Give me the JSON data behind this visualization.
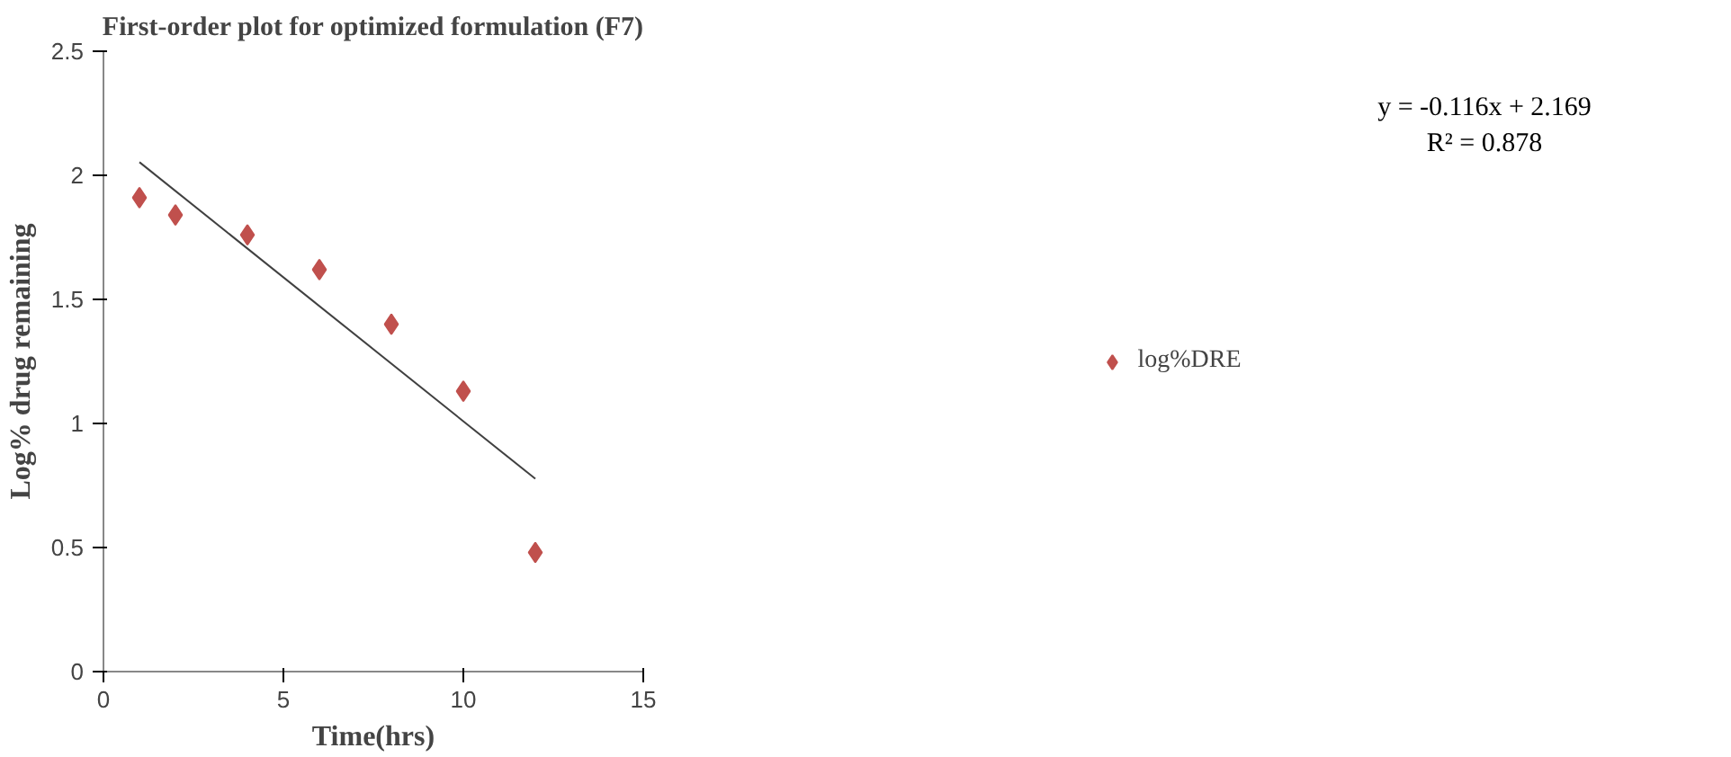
{
  "chart_data": {
    "type": "scatter",
    "title": "First-order plot for optimized formulation (F7)",
    "xlabel": "Time(hrs)",
    "ylabel": "Log% drug remaining",
    "xlim": [
      0,
      15
    ],
    "xticks": [
      0,
      5,
      10,
      15
    ],
    "ylim": [
      0,
      2.5
    ],
    "yticks": [
      0,
      0.5,
      1,
      1.5,
      2,
      2.5
    ],
    "x": [
      1,
      2,
      4,
      6,
      8,
      10,
      12
    ],
    "series": [
      {
        "name": "log%DRE",
        "color": "#c0504d",
        "marker": "diamond",
        "values": [
          1.91,
          1.84,
          1.76,
          1.62,
          1.4,
          1.13,
          0.48
        ]
      },
      {
        "type": "line",
        "color": "#404040",
        "x": [
          1,
          12
        ],
        "values": [
          2.053,
          0.777
        ]
      }
    ],
    "annotations": [
      "y = -0.116x + 2.169",
      "R² = 0.878"
    ],
    "grid": false,
    "legend": "right"
  }
}
